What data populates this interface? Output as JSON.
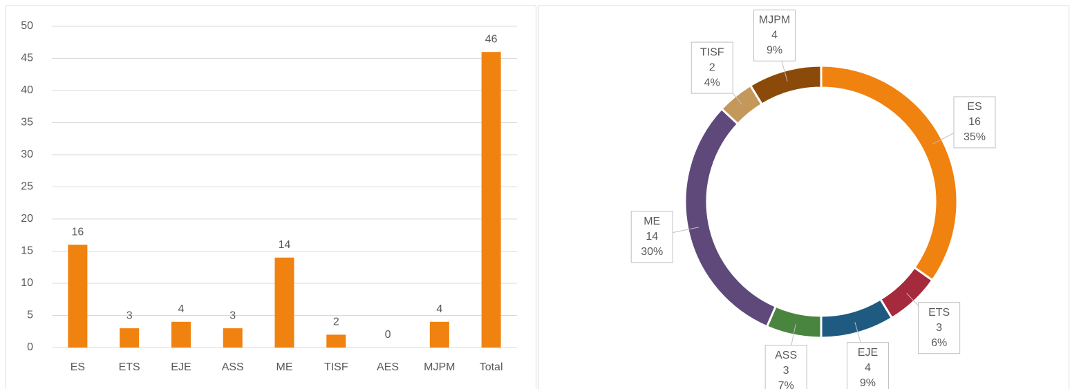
{
  "chart_data": [
    {
      "type": "bar",
      "categories": [
        "ES",
        "ETS",
        "EJE",
        "ASS",
        "ME",
        "TISF",
        "AES",
        "MJPM",
        "Total"
      ],
      "values": [
        16,
        3,
        4,
        3,
        14,
        2,
        0,
        4,
        46
      ],
      "color": "#f0820f",
      "ylim": [
        0,
        50
      ],
      "yticks": [
        0,
        5,
        10,
        15,
        20,
        25,
        30,
        35,
        40,
        45,
        50
      ],
      "grid": true
    },
    {
      "type": "donut",
      "categories": [
        "ES",
        "ETS",
        "EJE",
        "ASS",
        "ME",
        "TISF",
        "MJPM"
      ],
      "values": [
        16,
        3,
        4,
        3,
        14,
        2,
        4
      ],
      "shares": [
        35,
        6,
        9,
        7,
        30,
        4,
        9
      ],
      "share_labels": [
        "35%",
        "6%",
        "9%",
        "7%",
        "30%",
        "4%",
        "9%"
      ],
      "colors": [
        "#f0820f",
        "#a52a3c",
        "#1f5a80",
        "#4a8540",
        "#5f497a",
        "#c4975a",
        "#8b4a0a"
      ]
    }
  ]
}
